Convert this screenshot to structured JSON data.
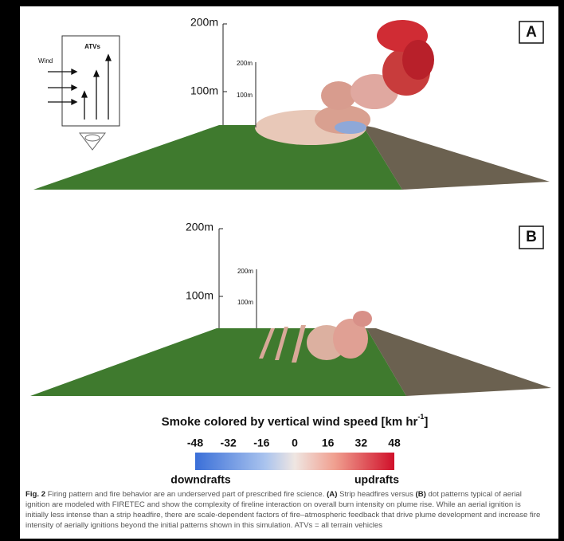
{
  "panel_a": {
    "label": "A",
    "axis_large": [
      "200m",
      "100m"
    ],
    "axis_small": [
      "200m",
      "100m"
    ],
    "inset": {
      "title": "ATVs",
      "wind": "Wind"
    }
  },
  "panel_b": {
    "label": "B",
    "axis_large": [
      "200m",
      "100m"
    ],
    "axis_small": [
      "200m",
      "100m"
    ]
  },
  "colorbar": {
    "title": "Smoke colored by vertical wind speed [km hr",
    "title_sup": "-1",
    "title_end": "]",
    "ticks": [
      -48,
      -32,
      -16,
      0,
      16,
      32,
      48
    ],
    "low_label": "downdrafts",
    "high_label": "updrafts"
  },
  "caption": [
    {
      "text": "Fig. 2",
      "bold": true
    },
    {
      "text": " Firing pattern and fire behavior are an underserved part of prescribed fire science. ",
      "bold": false
    },
    {
      "text": "(A)",
      "bold": true
    },
    {
      "text": " Strip headfires versus ",
      "bold": false
    },
    {
      "text": "(B)",
      "bold": true
    },
    {
      "text": " dot patterns typical of aerial ignition are modeled with FIRETEC and show the complexity of fireline interaction on overall burn intensity on plume rise. While an aerial ignition is initially less intense than a strip headfire, there are scale-dependent factors of fire–atmospheric feedback that drive plume development and increase fire intensity of aerially ignitions beyond the initial patterns shown in this simulation. ATVs = all terrain vehicles",
      "bold": false
    }
  ]
}
